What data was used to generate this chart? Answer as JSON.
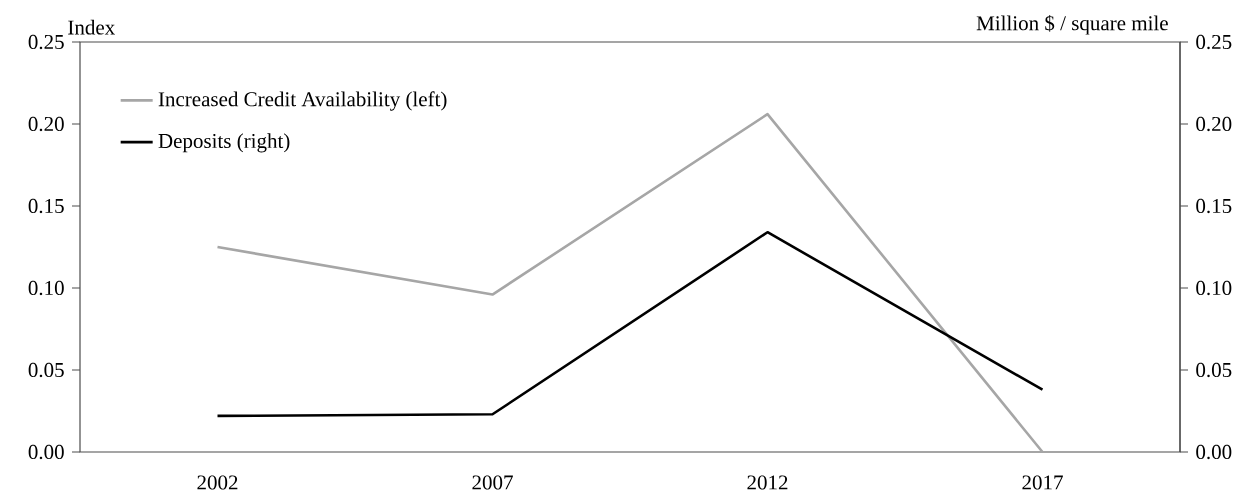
{
  "chart_data": {
    "type": "line",
    "ylabel": "Index",
    "y2label": "Million $ / square mile",
    "categories": [
      "2002",
      "2007",
      "2012",
      "2017"
    ],
    "series": [
      {
        "name": "Increased Credit Availability (left)",
        "color": "#a6a6a6",
        "values": [
          0.125,
          0.096,
          0.206,
          0
        ]
      },
      {
        "name": "Deposits (right)",
        "color": "#000000",
        "axis": "y2",
        "values": [
          0.022,
          0.023,
          0.134,
          0.038
        ]
      }
    ],
    "ylim": [
      0,
      0.25
    ],
    "yticks": [
      {
        "value": 0,
        "label": "0.00"
      },
      {
        "value": 0.05,
        "label": "0.05"
      },
      {
        "value": 0.1,
        "label": "0.10"
      },
      {
        "value": 0.15,
        "label": "0.15"
      },
      {
        "value": 0.2,
        "label": "0.20"
      },
      {
        "value": 0.25,
        "label": "0.25"
      }
    ],
    "y2lim": [
      0,
      0.25
    ],
    "y2ticks": [
      {
        "value": 0,
        "label": "0.00"
      },
      {
        "value": 0.05,
        "label": "0.05"
      },
      {
        "value": 0.1,
        "label": "0.10"
      },
      {
        "value": 0.15,
        "label": "0.15"
      },
      {
        "value": 0.2,
        "label": "0.20"
      },
      {
        "value": 0.25,
        "label": "0.25"
      }
    ],
    "legend": "top left"
  }
}
